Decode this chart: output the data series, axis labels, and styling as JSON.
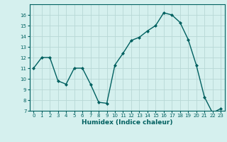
{
  "x": [
    0,
    1,
    2,
    3,
    4,
    5,
    6,
    7,
    8,
    9,
    10,
    11,
    12,
    13,
    14,
    15,
    16,
    17,
    18,
    19,
    20,
    21,
    22,
    23
  ],
  "y": [
    11,
    12,
    12,
    9.8,
    9.5,
    11,
    11,
    9.5,
    7.8,
    7.7,
    11.3,
    12.4,
    13.6,
    13.9,
    14.5,
    15.0,
    16.2,
    16.0,
    15.3,
    13.7,
    11.3,
    8.3,
    6.8,
    7.2
  ],
  "line_color": "#006060",
  "marker": "D",
  "marker_size": 2,
  "bg_color": "#d5f0ee",
  "grid_color": "#b8d8d5",
  "xlabel": "Humidex (Indice chaleur)",
  "xlabel_color": "#006060",
  "tick_color": "#006060",
  "xlim": [
    -0.5,
    23.5
  ],
  "ylim": [
    7,
    17
  ],
  "yticks": [
    7,
    8,
    9,
    10,
    11,
    12,
    13,
    14,
    15,
    16
  ],
  "xticks": [
    0,
    1,
    2,
    3,
    4,
    5,
    6,
    7,
    8,
    9,
    10,
    11,
    12,
    13,
    14,
    15,
    16,
    17,
    18,
    19,
    20,
    21,
    22,
    23
  ],
  "spine_color": "#006060",
  "tick_fontsize": 5.0,
  "xlabel_fontsize": 6.5,
  "linewidth": 1.0
}
